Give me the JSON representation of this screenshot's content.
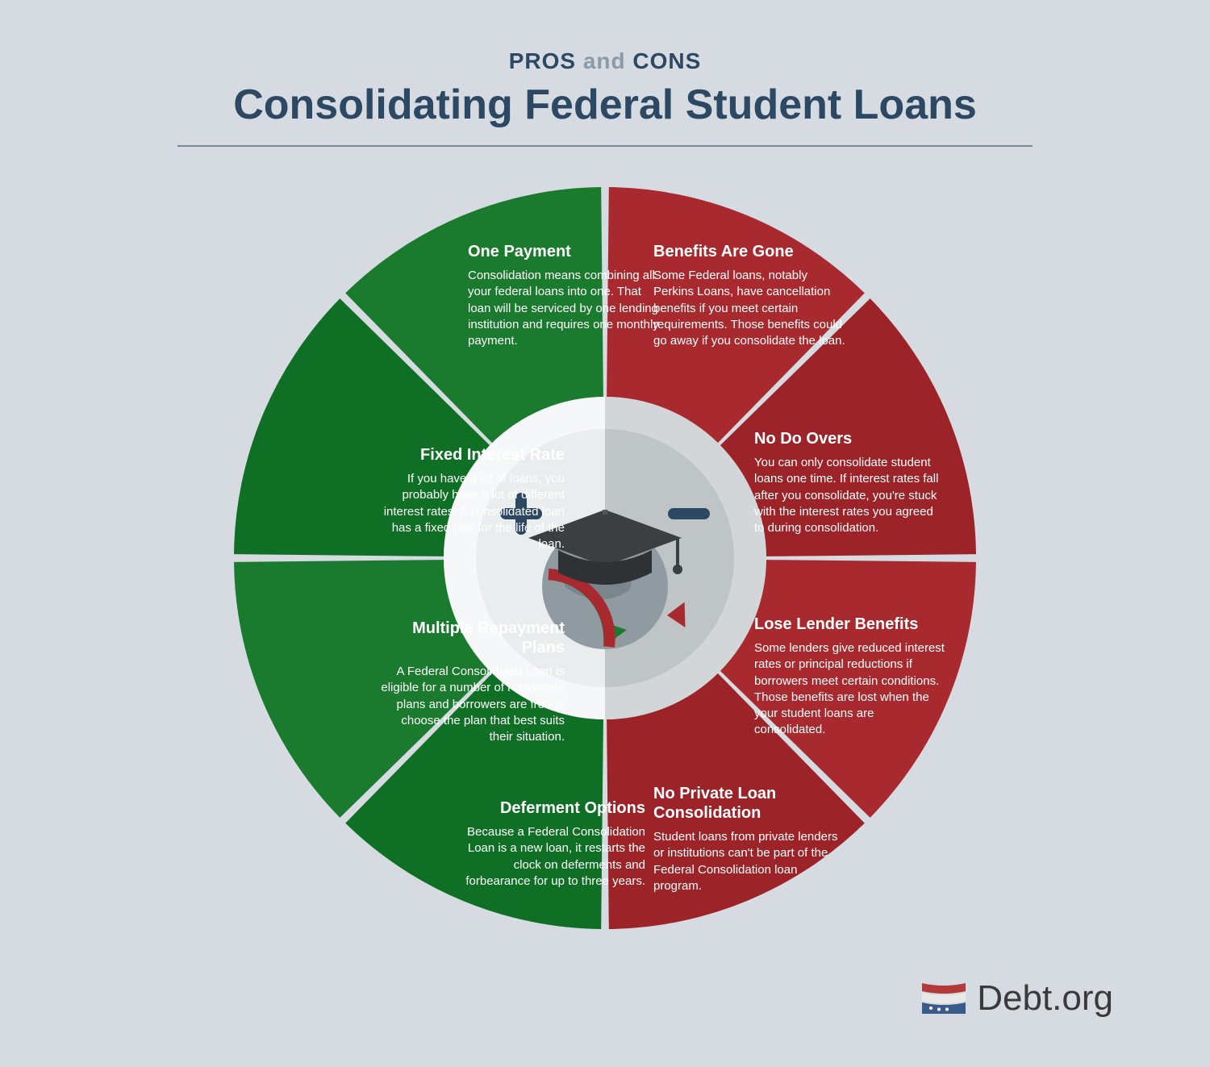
{
  "header": {
    "kicker_pros": "PROS",
    "kicker_and": "and",
    "kicker_cons": "CONS",
    "title": "Consolidating Federal Student Loans"
  },
  "chart": {
    "type": "donut-segmented",
    "outer_radius": 460,
    "inner_radius": 200,
    "gap_deg": 1.2,
    "pros_color": "#1a7a2e",
    "pros_color_alt": "#0f6f24",
    "cons_color": "#a92a2e",
    "cons_color_alt": "#9c2327",
    "center_bg_left": "#e9edee",
    "center_bg_right": "#bfc4c7",
    "center_ring_left": "#f5f7f8",
    "center_ring_right": "#d2d6d8",
    "plus_color": "#2c4863",
    "minus_color": "#2c4863",
    "pros": [
      {
        "title": "One Payment",
        "body": "Consolidation means combining all your federal loans into one. That loan will be serviced by one lending institution and requires one monthly payment."
      },
      {
        "title": "Fixed Interest Rate",
        "body": "If you have a lot of loans, you probably have a lot of different interest rates. A consolidated loan has a fixed rate for the life of the loan."
      },
      {
        "title": "Multiple Repayment Plans",
        "body": "A Federal Consolidated Loan is eligible for a number of repayment plans and borrowers are free to choose the plan that best suits their situation."
      },
      {
        "title": "Deferment Options",
        "body": "Because a Federal Consolidation Loan is a new loan, it restarts the clock on deferments and forbearance for up to three years."
      }
    ],
    "cons": [
      {
        "title": "Benefits Are Gone",
        "body": "Some Federal loans, notably Perkins Loans, have cancellation benefits if you meet certain requirements. Those benefits could go away if you consolidate the loan."
      },
      {
        "title": "No Do Overs",
        "body": "You can only consolidate student loans one time. If interest rates fall after you consolidate, you're stuck with the interest rates you agreed to during consolidation."
      },
      {
        "title": "Lose Lender Benefits",
        "body": "Some lenders give reduced interest rates or principal reductions if borrowers meet certain conditions. Those benefits are lost when the your student loans are consolidated."
      },
      {
        "title": "No Private Loan Consolidation",
        "body": "Student loans from private lenders or institutions can't be part of the Federal Consolidation loan program."
      }
    ]
  },
  "logo": {
    "text": "Debt.org",
    "flag_red": "#b23a3a",
    "flag_white": "#e8e8e8",
    "flag_blue": "#3a5a8a"
  }
}
